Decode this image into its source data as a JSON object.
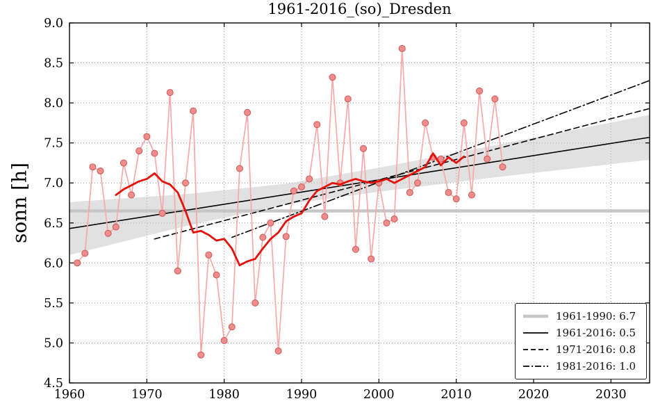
{
  "chart_data": {
    "type": "line",
    "title": "1961-2016_(so)_Dresden",
    "xlabel": "",
    "ylabel": "sonn [h]",
    "xlim": [
      1960,
      2035
    ],
    "ylim": [
      4.5,
      9.0
    ],
    "xticks": [
      1960,
      1970,
      1980,
      1990,
      2000,
      2010,
      2020,
      2030
    ],
    "yticks": [
      4.5,
      5.0,
      5.5,
      6.0,
      6.5,
      7.0,
      7.5,
      8.0,
      8.5,
      9.0
    ],
    "grid": true,
    "grid_style": "dotted",
    "background": "#ffffff",
    "band": {
      "name": "trend-confidence-band",
      "color": "#c9c9c9",
      "opacity": 0.55,
      "x": [
        1960,
        1975,
        1988,
        2000,
        2015,
        2035
      ],
      "upper": [
        6.76,
        6.86,
        6.99,
        7.19,
        7.47,
        7.85
      ],
      "lower": [
        6.1,
        6.46,
        6.73,
        6.89,
        7.07,
        7.29
      ]
    },
    "series": [
      {
        "name": "mean-1961-1990",
        "type": "hline",
        "value": 6.65,
        "color": "#c6c6c6",
        "width": 4.5
      },
      {
        "name": "trend-1961-2016",
        "type": "line",
        "dash": "solid",
        "color": "#000000",
        "width": 1.6,
        "x": [
          1960,
          2035
        ],
        "values": [
          6.43,
          7.57
        ]
      },
      {
        "name": "trend-1971-2016",
        "type": "line",
        "dash": "dashed",
        "color": "#000000",
        "width": 1.6,
        "x": [
          1971,
          2035
        ],
        "values": [
          6.3,
          7.93
        ]
      },
      {
        "name": "trend-1981-2016",
        "type": "line",
        "dash": "dashdot",
        "color": "#000000",
        "width": 1.6,
        "x": [
          1981,
          2035
        ],
        "values": [
          6.32,
          8.28
        ]
      },
      {
        "name": "annual-sunshine",
        "type": "line",
        "markers": true,
        "color_line": "#f7a8a8",
        "color_marker_fill": "#ef8d8d",
        "color_marker_edge": "#d05555",
        "width": 1.7,
        "x": [
          1961,
          1962,
          1963,
          1964,
          1965,
          1966,
          1967,
          1968,
          1969,
          1970,
          1971,
          1972,
          1973,
          1974,
          1975,
          1976,
          1977,
          1978,
          1979,
          1980,
          1981,
          1982,
          1983,
          1984,
          1985,
          1986,
          1987,
          1988,
          1989,
          1990,
          1991,
          1992,
          1993,
          1994,
          1995,
          1996,
          1997,
          1998,
          1999,
          2000,
          2001,
          2002,
          2003,
          2004,
          2005,
          2006,
          2007,
          2008,
          2009,
          2010,
          2011,
          2012,
          2013,
          2014,
          2015,
          2016
        ],
        "values": [
          6.0,
          6.12,
          7.2,
          7.15,
          6.37,
          6.45,
          7.25,
          6.85,
          7.4,
          7.58,
          7.37,
          6.62,
          8.13,
          5.9,
          7.0,
          7.9,
          4.85,
          6.1,
          5.85,
          5.03,
          5.2,
          7.18,
          7.88,
          5.5,
          6.32,
          6.5,
          4.9,
          6.33,
          6.9,
          6.95,
          7.05,
          7.73,
          6.58,
          8.32,
          7.0,
          8.05,
          6.17,
          7.43,
          6.05,
          7.0,
          6.5,
          6.55,
          8.68,
          6.88,
          7.0,
          7.75,
          7.32,
          7.3,
          6.88,
          6.8,
          7.75,
          6.85,
          8.15,
          7.3,
          8.05,
          7.2
        ]
      },
      {
        "name": "smoothed-running-mean",
        "type": "line",
        "color": "#e3120b",
        "width": 2.8,
        "x": [
          1966,
          1967,
          1968,
          1969,
          1970,
          1971,
          1972,
          1973,
          1974,
          1975,
          1976,
          1977,
          1978,
          1979,
          1980,
          1981,
          1982,
          1983,
          1984,
          1985,
          1986,
          1987,
          1988,
          1989,
          1990,
          1991,
          1992,
          1993,
          1994,
          1995,
          1996,
          1997,
          1998,
          1999,
          2000,
          2001,
          2002,
          2003,
          2004,
          2005,
          2006,
          2007,
          2008,
          2009,
          2010,
          2011
        ],
        "values": [
          6.85,
          6.92,
          6.97,
          7.02,
          7.05,
          7.12,
          7.02,
          6.98,
          6.88,
          6.65,
          6.38,
          6.4,
          6.35,
          6.28,
          6.3,
          6.18,
          5.97,
          6.02,
          6.05,
          6.18,
          6.3,
          6.38,
          6.52,
          6.58,
          6.62,
          6.78,
          6.9,
          6.95,
          7.0,
          6.98,
          7.02,
          7.05,
          7.02,
          7.0,
          7.02,
          7.05,
          7.0,
          7.05,
          7.1,
          7.15,
          7.2,
          7.37,
          7.22,
          7.32,
          7.25,
          7.33
        ]
      }
    ],
    "legend": {
      "position": "lower right",
      "items": [
        {
          "label": "1961-1990: 6.7",
          "style": "gray-thick"
        },
        {
          "label": "1961-2016: 0.5",
          "style": "solid"
        },
        {
          "label": "1971-2016: 0.8",
          "style": "dashed"
        },
        {
          "label": "1981-2016: 1.0",
          "style": "dashdot"
        }
      ]
    }
  }
}
